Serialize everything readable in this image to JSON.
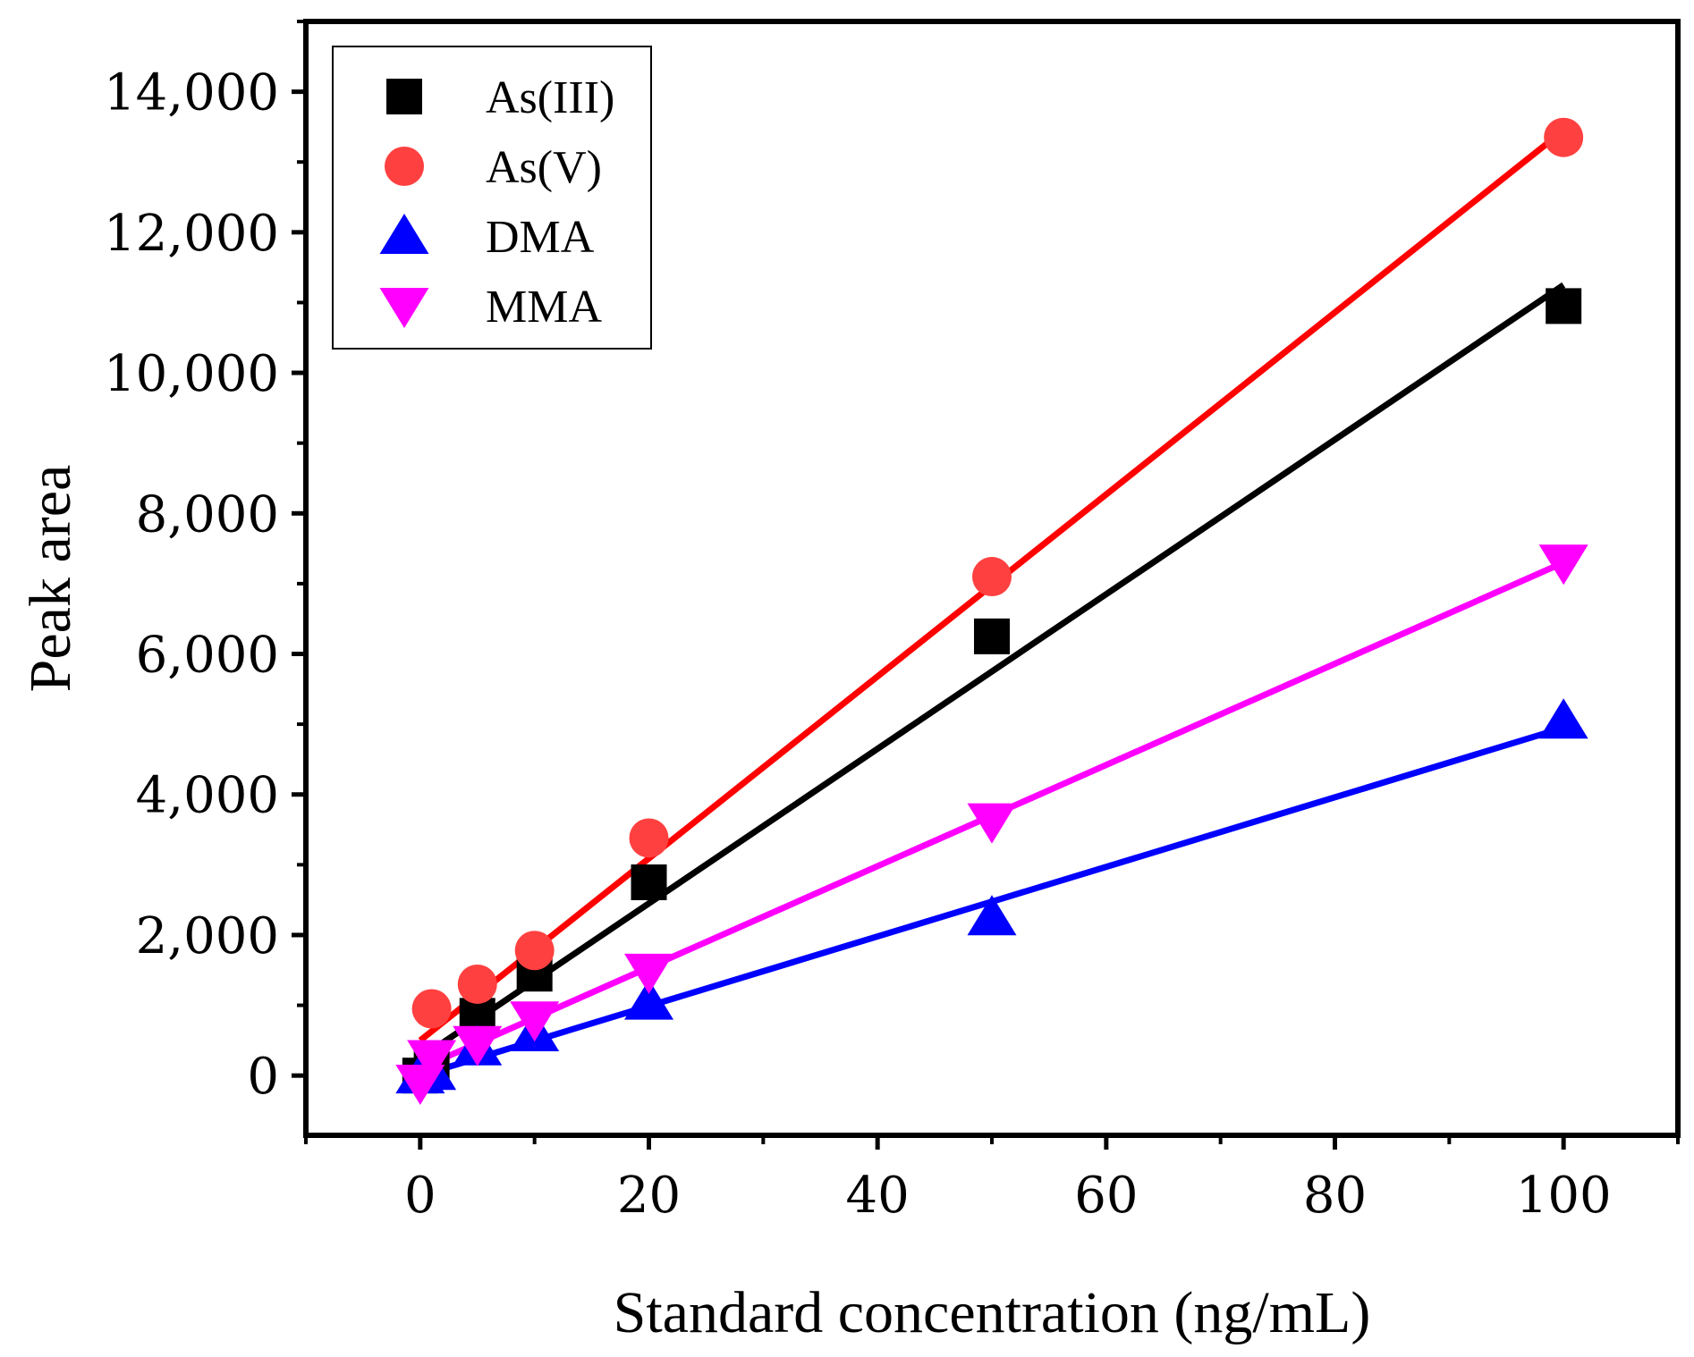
{
  "chart_data": {
    "type": "scatter",
    "title": "",
    "xlabel": "Standard concentration (ng/mL)",
    "ylabel": "Peak area",
    "xlim": [
      -10,
      110
    ],
    "ylim": [
      -850,
      15000
    ],
    "xticks": [
      0,
      20,
      40,
      60,
      80,
      100
    ],
    "xtick_labels": [
      "0",
      "20",
      "40",
      "60",
      "80",
      "100"
    ],
    "yticks": [
      0,
      2000,
      4000,
      6000,
      8000,
      10000,
      12000,
      14000
    ],
    "ytick_labels": [
      "0",
      "2,000",
      "4,000",
      "6,000",
      "8,000",
      "10,000",
      "12,000",
      "14,000"
    ],
    "grid": false,
    "legend_position": "top-left",
    "series": [
      {
        "name": "As(III)",
        "marker": "square",
        "color": "#000000",
        "line_color": "#000000",
        "x": [
          0,
          1,
          5,
          10,
          20,
          50,
          100
        ],
        "y": [
          0,
          100,
          850,
          1450,
          2750,
          6250,
          10950
        ],
        "fit": [
          [
            0,
            250
          ],
          [
            100,
            11250
          ]
        ]
      },
      {
        "name": "As(V)",
        "marker": "circle",
        "color": "#ff4040",
        "line_color": "#ff0000",
        "x": [
          1,
          5,
          10,
          20,
          50,
          100
        ],
        "y": [
          950,
          1300,
          1780,
          3380,
          7100,
          13350
        ],
        "fit": [
          [
            0,
            500
          ],
          [
            100,
            13450
          ]
        ]
      },
      {
        "name": "DMA",
        "marker": "triangle-up",
        "color": "#0000ff",
        "line_color": "#0000ff",
        "x": [
          0,
          1,
          5,
          10,
          20,
          50,
          100
        ],
        "y": [
          0,
          50,
          400,
          600,
          1050,
          2250,
          5050
        ],
        "fit": [
          [
            0,
            0
          ],
          [
            100,
            4950
          ]
        ]
      },
      {
        "name": "MMA",
        "marker": "triangle-down",
        "color": "#ff00ff",
        "line_color": "#ff00ff",
        "x": [
          0,
          1,
          5,
          10,
          20,
          50,
          100
        ],
        "y": [
          -100,
          250,
          450,
          800,
          1480,
          3620,
          7300
        ],
        "fit": [
          [
            0,
            100
          ],
          [
            100,
            7300
          ]
        ]
      }
    ]
  }
}
